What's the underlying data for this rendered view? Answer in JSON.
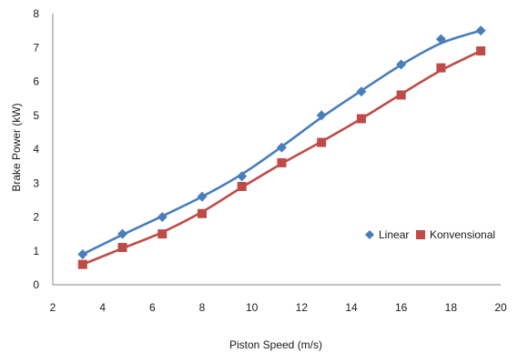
{
  "chart_data": {
    "type": "scatter",
    "title": "",
    "xlabel": "Piston Speed (m/s)",
    "ylabel": "Brake Power (kW)",
    "xlim": [
      2,
      20
    ],
    "ylim": [
      0,
      8
    ],
    "x_ticks": [
      "2",
      "4",
      "6",
      "8",
      "10",
      "12",
      "14",
      "16",
      "18",
      "20"
    ],
    "y_ticks": [
      "0",
      "1",
      "2",
      "3",
      "4",
      "5",
      "6",
      "7",
      "8"
    ],
    "grid": false,
    "legend": {
      "placement": "right",
      "entries": [
        "Linear",
        "Konvensional"
      ]
    },
    "series": [
      {
        "name": "Linear",
        "marker": "diamond",
        "color": "#4a7ebb",
        "trendline": true,
        "x": [
          3.2,
          4.8,
          6.4,
          8.0,
          9.6,
          11.2,
          12.8,
          14.4,
          16.0,
          17.6,
          19.2
        ],
        "y": [
          0.9,
          1.5,
          2.0,
          2.6,
          3.2,
          4.05,
          5.0,
          5.7,
          6.5,
          7.25,
          7.5
        ]
      },
      {
        "name": "Konvensional",
        "marker": "square",
        "color": "#be4b48",
        "trendline": true,
        "x": [
          3.2,
          4.8,
          6.4,
          8.0,
          9.6,
          11.2,
          12.8,
          14.4,
          16.0,
          17.6,
          19.2
        ],
        "y": [
          0.6,
          1.1,
          1.5,
          2.1,
          2.9,
          3.6,
          4.2,
          4.9,
          5.6,
          6.4,
          6.9
        ]
      }
    ]
  }
}
